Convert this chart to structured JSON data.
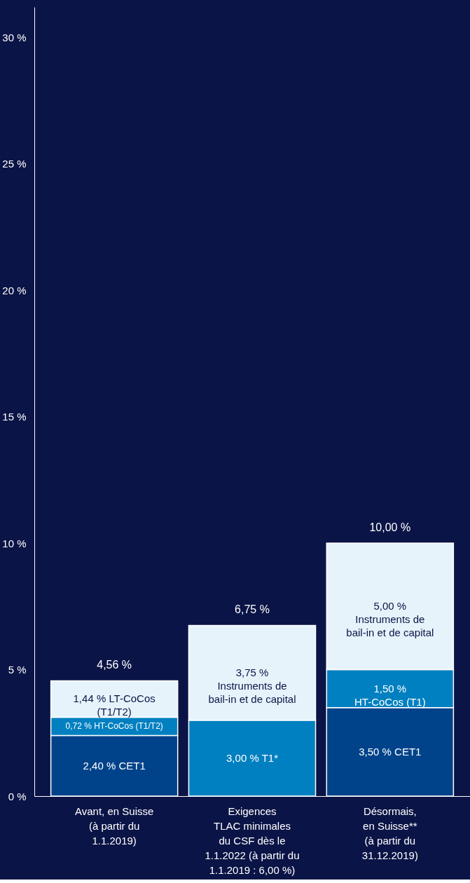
{
  "chart_data": {
    "type": "bar",
    "stacked": true,
    "categories": [
      "Avant, en Suisse\n(à partir du\n1.1.2019)",
      "Exigences\nTLAC minimales\ndu CSF dès le\n1.1.2022 (à partir du\n1.1.2019 : 6,00 %)",
      "Désormais,\nen Suisse**\n(à partir du\n31.12.2019)"
    ],
    "series": [
      {
        "color": "#00438a",
        "values": [
          2.4,
          null,
          3.5
        ],
        "value_labels": [
          "2,40 % CET1",
          null,
          "3,50 % CET1"
        ]
      },
      {
        "color": "#0080c0",
        "values": [
          0.72,
          3.0,
          1.5
        ],
        "value_labels": [
          "0,72 % HT-CoCos (T1/T2)",
          "3,00 % T1*",
          "1,50 %\nHT-CoCos (T1)"
        ]
      },
      {
        "color": "#e6f3fb",
        "values": [
          1.44,
          3.75,
          5.0
        ],
        "value_labels": [
          "1,44 % LT-CoCos\n(T1/T2)",
          "3,75 %\nInstruments de\nbail-in et de capital",
          "5,00 %\nInstruments de\nbail-in et de capital"
        ]
      }
    ],
    "totals": [
      "4,56 %",
      "6,75 %",
      "10,00 %"
    ],
    "ylim": [
      0,
      31.2
    ],
    "yticks": [
      {
        "value": 0,
        "label": "0 %"
      },
      {
        "value": 5,
        "label": "5 %"
      },
      {
        "value": 10,
        "label": "10 %"
      },
      {
        "value": 15,
        "label": "15 %"
      },
      {
        "value": 20,
        "label": "20 %"
      },
      {
        "value": 25,
        "label": "25 %"
      },
      {
        "value": 30,
        "label": "30 %"
      }
    ],
    "grid": false
  }
}
